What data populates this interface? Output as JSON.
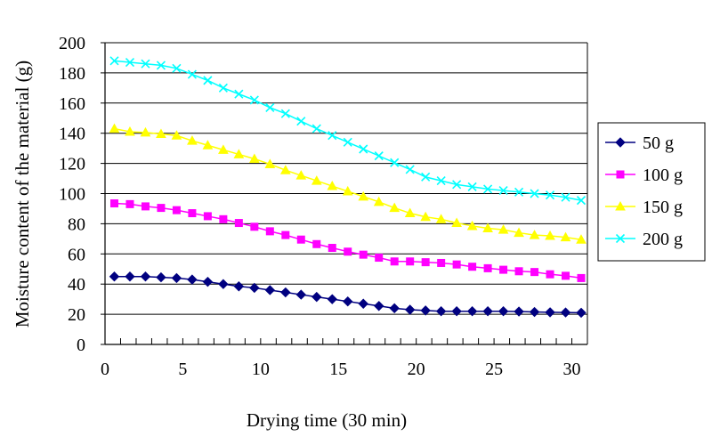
{
  "chart_data": {
    "type": "line",
    "title": "",
    "xlabel": "Drying time (30 min)",
    "ylabel": "Moisture content of the material (g)",
    "xlim": [
      0,
      31
    ],
    "ylim": [
      0,
      200
    ],
    "x_ticks": [
      0,
      5,
      10,
      15,
      20,
      25,
      30
    ],
    "y_ticks": [
      0,
      20,
      40,
      60,
      80,
      100,
      120,
      140,
      160,
      180,
      200
    ],
    "grid": "horizontal",
    "legend_position": "right",
    "x": [
      0.6,
      1.6,
      2.6,
      3.6,
      4.6,
      5.6,
      6.6,
      7.6,
      8.6,
      9.6,
      10.6,
      11.6,
      12.6,
      13.6,
      14.6,
      15.6,
      16.6,
      17.6,
      18.6,
      19.6,
      20.6,
      21.6,
      22.6,
      23.6,
      24.6,
      25.6,
      26.6,
      27.6,
      28.6,
      29.6,
      30.6
    ],
    "series": [
      {
        "name": "50 g",
        "color": "#000080",
        "marker": "diamond",
        "values": [
          45,
          45,
          45,
          44.5,
          44,
          43,
          41.5,
          40,
          38.5,
          37.5,
          36,
          34.5,
          33,
          31.5,
          30,
          28.5,
          27,
          25.5,
          24,
          23,
          22.5,
          22,
          22,
          22,
          22,
          22,
          21.8,
          21.5,
          21.3,
          21.2,
          21
        ]
      },
      {
        "name": "100 g",
        "color": "#FF00FF",
        "marker": "square",
        "values": [
          93.5,
          93,
          91.5,
          90.5,
          89,
          87,
          85,
          83,
          80.5,
          78,
          75,
          72.5,
          69.5,
          66.5,
          64,
          61.5,
          59.5,
          57.5,
          55,
          55,
          54.5,
          54,
          53,
          51.5,
          50.5,
          49.5,
          48.5,
          48,
          46.5,
          45.5,
          44
        ]
      },
      {
        "name": "150 g",
        "color": "#FFFF00",
        "marker": "triangle",
        "values": [
          143,
          141,
          140.5,
          139.5,
          138.5,
          135,
          132,
          129,
          126,
          123,
          119.5,
          115.5,
          112,
          108.5,
          105,
          101.5,
          98,
          94.5,
          90.5,
          87,
          84.5,
          83,
          80.5,
          78.5,
          77,
          76,
          74,
          72.5,
          72,
          71,
          69.5
        ]
      },
      {
        "name": "200 g",
        "color": "#00FFFF",
        "marker": "x",
        "values": [
          188,
          187,
          186,
          185,
          183,
          179,
          175,
          170,
          166,
          162,
          157,
          153,
          148,
          143,
          138.5,
          134,
          129.5,
          125,
          120.5,
          116,
          111,
          108.5,
          106,
          104.5,
          103,
          102,
          101,
          100,
          99,
          97.5,
          95.5
        ]
      }
    ]
  }
}
